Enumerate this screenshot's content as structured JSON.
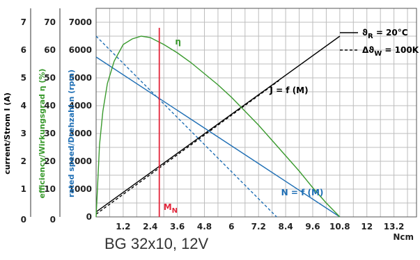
{
  "caption": "BG 32x10, 12V",
  "chart_data": {
    "type": "line",
    "title": "",
    "xlabel": "Ncm",
    "x_ticks": [
      "1.2",
      "2.4",
      "3.6",
      "4.8",
      "6",
      "7.2",
      "8.4",
      "9.6",
      "10.8",
      "12",
      "13.2"
    ],
    "xlim": [
      0,
      14.2
    ],
    "y_axes": [
      {
        "id": "speed",
        "label": "rated speed/Drehzahl n (rpm)",
        "ticks": [
          "1000",
          "2000",
          "3000",
          "4000",
          "5000",
          "6000",
          "7000"
        ],
        "origin_label": "0",
        "ylim": [
          0,
          7500
        ],
        "color": "#1f6fb5"
      },
      {
        "id": "efficiency",
        "label": "efficiency/Wirkungsgrad η (%)",
        "ticks": [
          "10",
          "20",
          "30",
          "40",
          "50",
          "60",
          "70"
        ],
        "origin_label": "0",
        "ylim": [
          0,
          75
        ],
        "color": "#3a9a2e"
      },
      {
        "id": "current",
        "label": "current/Strom I (A)",
        "ticks": [
          "1",
          "2",
          "3",
          "4",
          "5",
          "6",
          "7"
        ],
        "origin_label": "0",
        "ylim": [
          0,
          7.5
        ],
        "color": "#000000"
      }
    ],
    "grid": true,
    "series": [
      {
        "name": "J = f (M)",
        "axis": "current",
        "color": "#000000",
        "style": "solid",
        "x": [
          0,
          10.8
        ],
        "y": [
          0.18,
          6.5
        ]
      },
      {
        "name": "",
        "axis": "current",
        "color": "#000000",
        "style": "dashed",
        "x": [
          0,
          8.1
        ],
        "y": [
          0.1,
          4.9
        ]
      },
      {
        "name": "N = f (M)",
        "axis": "speed",
        "color": "#1f6fb5",
        "style": "solid",
        "x": [
          0,
          10.8
        ],
        "y": [
          5750,
          0
        ]
      },
      {
        "name": "",
        "axis": "speed",
        "color": "#1f6fb5",
        "style": "dashed",
        "x": [
          0,
          8.0
        ],
        "y": [
          6500,
          0
        ]
      },
      {
        "name": "η",
        "axis": "efficiency",
        "color": "#3a9a2e",
        "style": "solid",
        "x": [
          0,
          0.15,
          0.3,
          0.5,
          0.8,
          1.2,
          1.6,
          2.0,
          2.4,
          3.0,
          3.6,
          4.2,
          4.8,
          5.4,
          6.0,
          6.6,
          7.2,
          7.8,
          8.4,
          9.0,
          9.6,
          10.2,
          10.8
        ],
        "y": [
          0,
          26,
          38,
          48,
          56,
          62,
          64,
          65,
          64.5,
          62,
          59,
          55.5,
          51.5,
          47.5,
          43,
          38,
          33,
          27.5,
          22,
          16.5,
          10.5,
          5,
          0
        ]
      }
    ],
    "markers": [
      {
        "label": "M",
        "subscript": "N",
        "x": 2.8,
        "color": "#e3263b"
      }
    ],
    "legend": {
      "position": "top-right",
      "entries": [
        {
          "style": "solid",
          "symbol": "ϑ",
          "subscript": "R",
          "text": " = 20°C"
        },
        {
          "style": "dashed",
          "symbol": "Δϑ",
          "subscript": "W",
          "text": " = 100K"
        }
      ]
    }
  }
}
